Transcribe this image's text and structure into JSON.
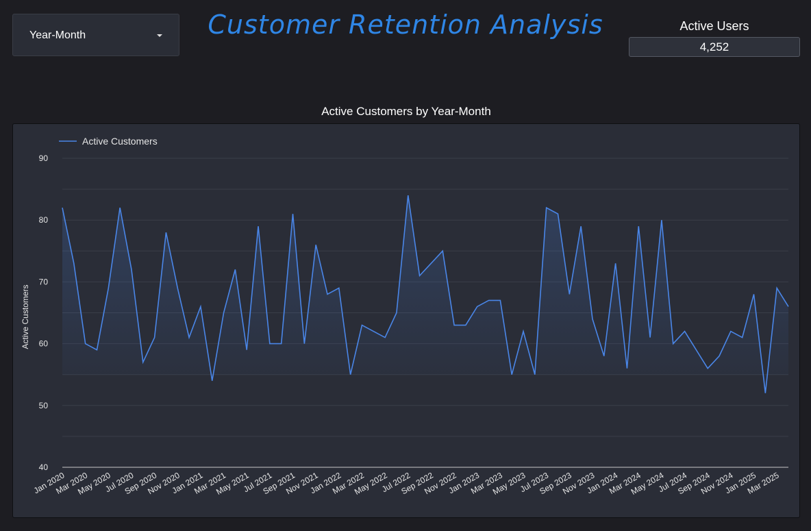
{
  "filter": {
    "label": "Year-Month"
  },
  "header": {
    "title": "Customer Retention Analysis"
  },
  "kpi": {
    "title": "Active Users",
    "value": "4,252"
  },
  "colors": {
    "accent": "#2f86e6",
    "line": "#4a86e8",
    "background": "#1d1d22",
    "panel": "#2a2d37"
  },
  "icons": {
    "dropdown": "caret-down-icon"
  },
  "chart_data": {
    "type": "line",
    "title": "Active Customers by Year-Month",
    "xlabel": "",
    "ylabel": "Active Customers",
    "ylim": [
      40,
      90
    ],
    "yticks": [
      40,
      50,
      60,
      70,
      80,
      90
    ],
    "grid": true,
    "legend": "top-left",
    "x": [
      "Jan 2020",
      "Feb 2020",
      "Mar 2020",
      "Apr 2020",
      "May 2020",
      "Jun 2020",
      "Jul 2020",
      "Aug 2020",
      "Sep 2020",
      "Oct 2020",
      "Nov 2020",
      "Dec 2020",
      "Jan 2021",
      "Feb 2021",
      "Mar 2021",
      "Apr 2021",
      "May 2021",
      "Jun 2021",
      "Jul 2021",
      "Aug 2021",
      "Sep 2021",
      "Oct 2021",
      "Nov 2021",
      "Dec 2021",
      "Jan 2022",
      "Feb 2022",
      "Mar 2022",
      "Apr 2022",
      "May 2022",
      "Jun 2022",
      "Jul 2022",
      "Aug 2022",
      "Sep 2022",
      "Oct 2022",
      "Nov 2022",
      "Dec 2022",
      "Jan 2023",
      "Feb 2023",
      "Mar 2023",
      "Apr 2023",
      "May 2023",
      "Jun 2023",
      "Jul 2023",
      "Aug 2023",
      "Sep 2023",
      "Oct 2023",
      "Nov 2023",
      "Dec 2023",
      "Jan 2024",
      "Feb 2024",
      "Mar 2024",
      "Apr 2024",
      "May 2024",
      "Jun 2024",
      "Jul 2024",
      "Aug 2024",
      "Sep 2024",
      "Oct 2024",
      "Nov 2024",
      "Dec 2024",
      "Jan 2025",
      "Feb 2025",
      "Mar 2025",
      "Apr 2025"
    ],
    "xtick_labels": [
      "Jan 2020",
      "Mar 2020",
      "May 2020",
      "Jul 2020",
      "Sep 2020",
      "Nov 2020",
      "Jan 2021",
      "Mar 2021",
      "May 2021",
      "Jul 2021",
      "Sep 2021",
      "Nov 2021",
      "Jan 2022",
      "Mar 2022",
      "May 2022",
      "Jul 2022",
      "Sep 2022",
      "Nov 2022",
      "Jan 2023",
      "Mar 2023",
      "May 2023",
      "Jul 2023",
      "Sep 2023",
      "Nov 2023",
      "Jan 2024",
      "Mar 2024",
      "May 2024",
      "Jul 2024",
      "Sep 2024",
      "Nov 2024",
      "Jan 2025",
      "Mar 2025"
    ],
    "series": [
      {
        "name": "Active Customers",
        "values": [
          82,
          73,
          60,
          59,
          69,
          82,
          72,
          57,
          61,
          78,
          69,
          61,
          66,
          54,
          65,
          72,
          59,
          79,
          60,
          60,
          81,
          60,
          76,
          68,
          69,
          55,
          63,
          62,
          61,
          65,
          84,
          71,
          73,
          75,
          63,
          63,
          66,
          67,
          67,
          55,
          62,
          55,
          82,
          81,
          68,
          79,
          64,
          58,
          73,
          56,
          79,
          61,
          80,
          60,
          62,
          59,
          56,
          58,
          62,
          61,
          68,
          52,
          69,
          66
        ]
      }
    ]
  }
}
